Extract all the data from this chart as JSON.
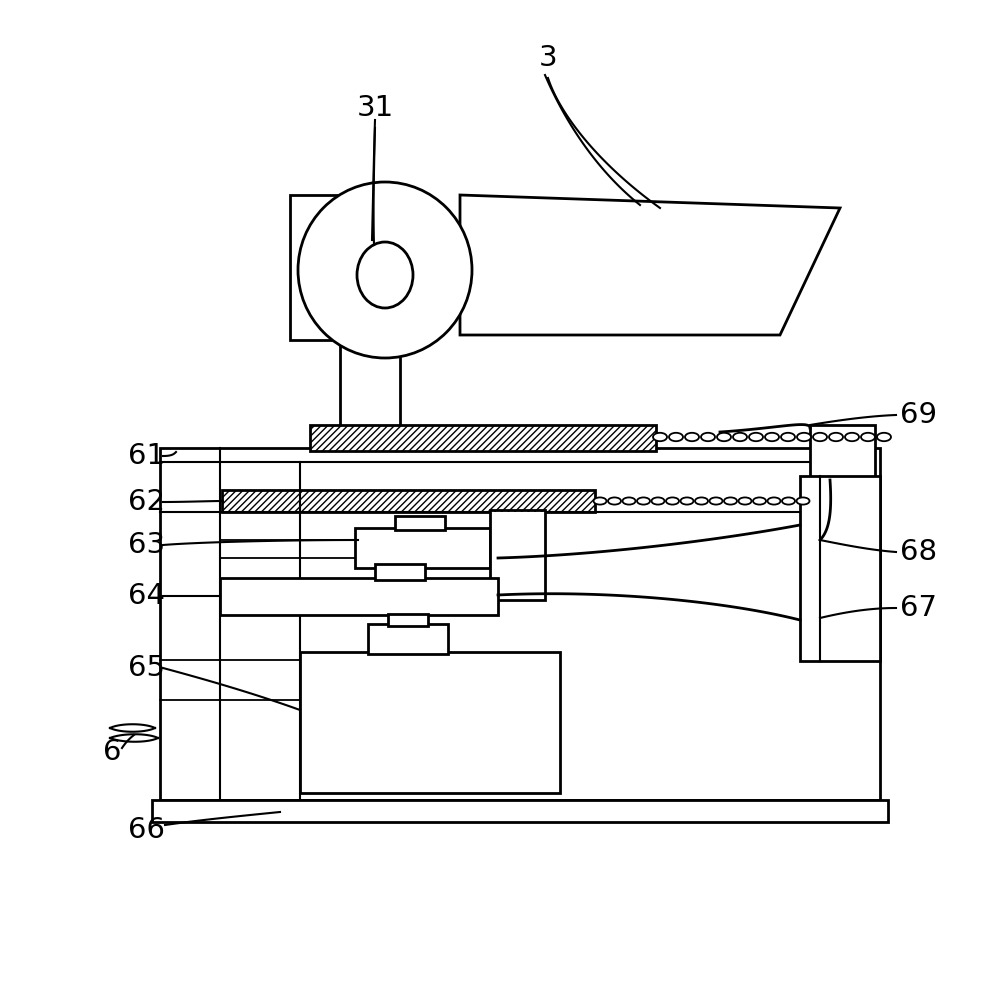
{
  "bg_color": "#ffffff",
  "line_color": "#000000",
  "fig_width": 10.0,
  "fig_height": 9.99,
  "dpi": 100
}
